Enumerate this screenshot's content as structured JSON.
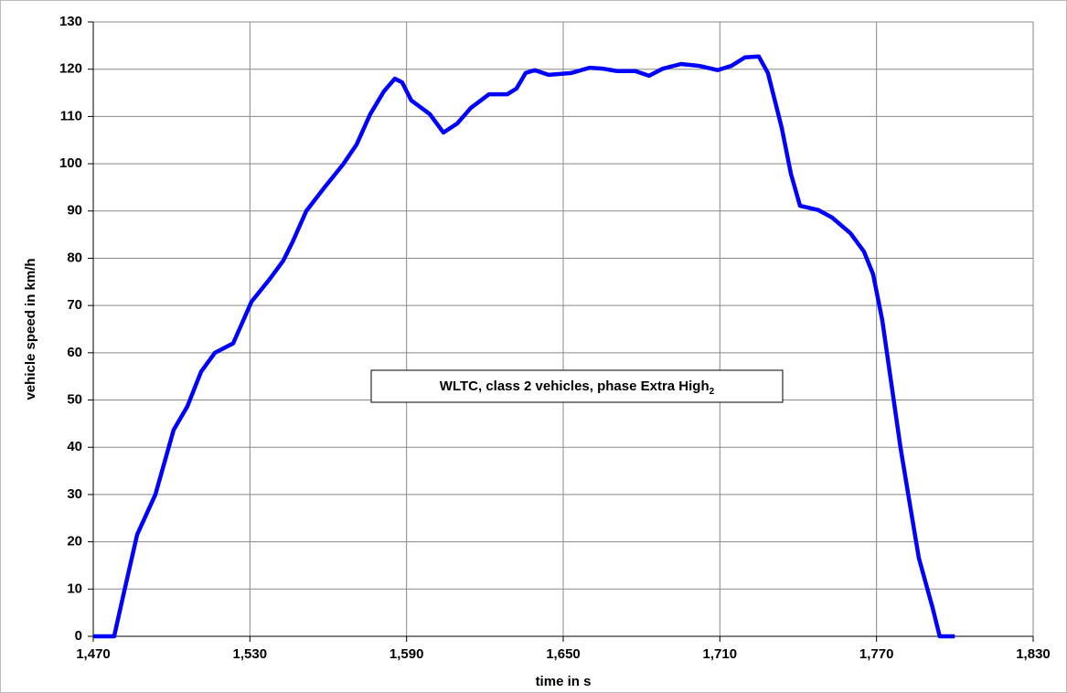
{
  "chart_data": {
    "type": "line",
    "x_label": "time in s",
    "y_label": "vehicle speed in km/h",
    "annotation": {
      "text": "WLTC, class 2 vehicles, phase Extra High",
      "subscript": "2"
    },
    "xlim": [
      1470,
      1830
    ],
    "xticks": [
      {
        "value": 1470,
        "label": "1,470"
      },
      {
        "value": 1530,
        "label": "1,530"
      },
      {
        "value": 1590,
        "label": "1,590"
      },
      {
        "value": 1650,
        "label": "1,650"
      },
      {
        "value": 1710,
        "label": "1,710"
      },
      {
        "value": 1770,
        "label": "1,770"
      },
      {
        "value": 1830,
        "label": "1,830"
      }
    ],
    "ylim": [
      0,
      130
    ],
    "yticks": [
      0,
      10,
      20,
      30,
      40,
      50,
      60,
      70,
      80,
      90,
      100,
      110,
      120,
      130
    ],
    "grid": true,
    "x": [
      1470,
      1478,
      1481.6,
      1486.8,
      1493.8,
      1500.8,
      1506,
      1511.3,
      1516.6,
      1523.6,
      1530.6,
      1537.6,
      1542.8,
      1546.3,
      1551.6,
      1558.6,
      1565.6,
      1570.8,
      1576.1,
      1581.3,
      1585.5,
      1588.3,
      1591.8,
      1598.9,
      1604.1,
      1609.4,
      1614.6,
      1621.6,
      1628.6,
      1632.1,
      1635.6,
      1639.1,
      1644.4,
      1653.1,
      1660.1,
      1665.4,
      1670.6,
      1677.6,
      1682.9,
      1688.1,
      1695.1,
      1702.1,
      1709.1,
      1714.4,
      1719.6,
      1724.9,
      1728.4,
      1733.7,
      1737.2,
      1740.7,
      1747.7,
      1753,
      1760,
      1765.2,
      1768.7,
      1772.2,
      1775.7,
      1779.2,
      1782.7,
      1786.2,
      1791.5,
      1794.2,
      1800
    ],
    "series": [
      {
        "color": "#0000ff",
        "values": [
          0,
          0,
          8.9,
          21.5,
          30,
          43.7,
          48.6,
          56,
          60,
          62,
          70.8,
          75.6,
          79.5,
          83.4,
          90,
          95,
          99.8,
          104,
          110.5,
          115.3,
          118,
          117.2,
          113.4,
          110.5,
          106.6,
          108.5,
          111.8,
          114.7,
          114.7,
          115.9,
          119.2,
          119.8,
          118.8,
          119.2,
          120.3,
          120.1,
          119.6,
          119.6,
          118.6,
          120.1,
          121.1,
          120.7,
          119.8,
          120.7,
          122.5,
          122.7,
          119.2,
          107.6,
          97.9,
          91.1,
          90.2,
          88.6,
          85.3,
          81.4,
          76.6,
          66.9,
          53.4,
          39.9,
          28.2,
          16.6,
          6,
          0,
          0
        ]
      }
    ]
  }
}
